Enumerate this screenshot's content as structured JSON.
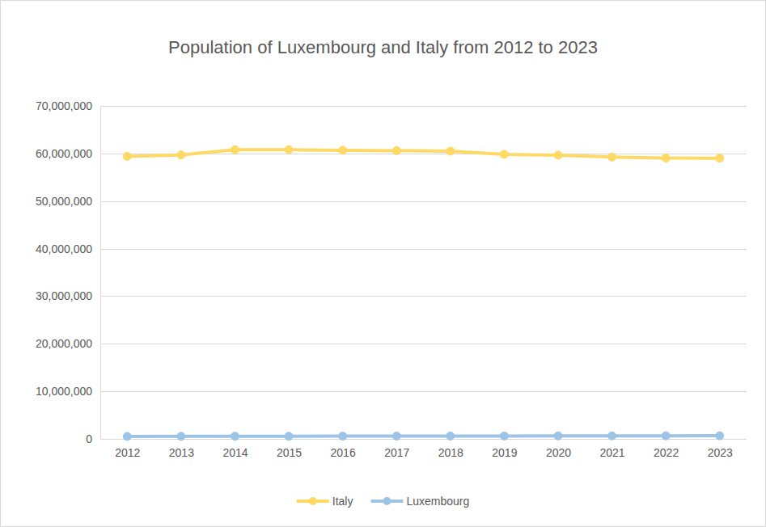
{
  "chart_data": {
    "type": "line",
    "title": "Population of Luxembourg and Italy from 2012 to 2023",
    "categories": [
      "2012",
      "2013",
      "2014",
      "2015",
      "2016",
      "2017",
      "2018",
      "2019",
      "2020",
      "2021",
      "2022",
      "2023"
    ],
    "series": [
      {
        "name": "Italy",
        "color": "#ffd966",
        "marker": "circle",
        "values": [
          59394207,
          59685227,
          60782668,
          60795612,
          60665551,
          60589445,
          60483973,
          59816673,
          59641488,
          59236213,
          59030133,
          58997201
        ]
      },
      {
        "name": "Luxembourg",
        "color": "#9dc3e6",
        "marker": "circle",
        "values": [
          524853,
          537039,
          549680,
          562958,
          576249,
          590667,
          602005,
          613894,
          626108,
          634730,
          645397,
          660809
        ]
      }
    ],
    "ylim": [
      0,
      70000000
    ],
    "yticks": [
      0,
      {
        "value": 10000000,
        "label": "10,000,000"
      },
      {
        "value": 20000000,
        "label": "20,000,000"
      },
      {
        "value": 30000000,
        "label": "30,000,000"
      },
      {
        "value": 40000000,
        "label": "40,000,000"
      },
      {
        "value": 50000000,
        "label": "50,000,000"
      },
      {
        "value": 60000000,
        "label": "60,000,000"
      },
      {
        "value": 70000000,
        "label": "70,000,000"
      }
    ],
    "grid": true,
    "legend": "bottom"
  }
}
